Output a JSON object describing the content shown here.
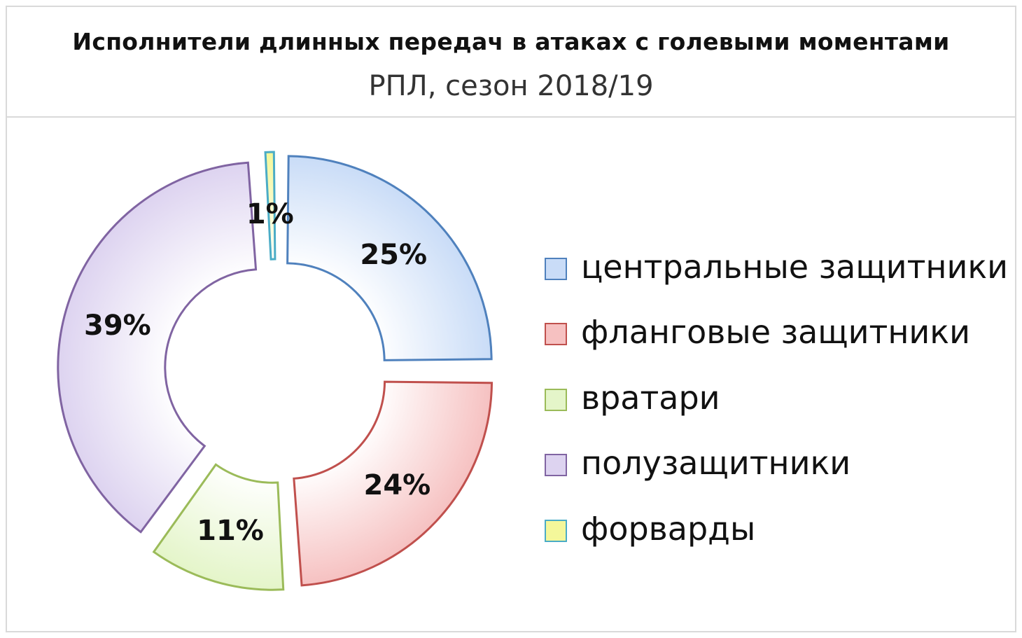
{
  "chart_data": {
    "type": "pie",
    "title": "Исполнители длинных передач в атаках с голевыми моментами",
    "subtitle": "РПЛ, сезон 2018/19",
    "donut": true,
    "exploded": true,
    "legend_position": "right",
    "slices": [
      {
        "name": "центральные защитники",
        "value": 25,
        "label": "25%",
        "fill": "#c9dcf7",
        "stroke": "#4f81bd"
      },
      {
        "name": "фланговые защитники",
        "value": 24,
        "label": "24%",
        "fill": "#f6c1c1",
        "stroke": "#c0504d"
      },
      {
        "name": "вратари",
        "value": 11,
        "label": "11%",
        "fill": "#e4f5c9",
        "stroke": "#9bbb59"
      },
      {
        "name": "полузащитники",
        "value": 39,
        "label": "39%",
        "fill": "#ddd3f0",
        "stroke": "#8064a2"
      },
      {
        "name": "форварды",
        "value": 1,
        "label": "1%",
        "fill": "#f4f79a",
        "stroke": "#4bacc6"
      }
    ]
  }
}
